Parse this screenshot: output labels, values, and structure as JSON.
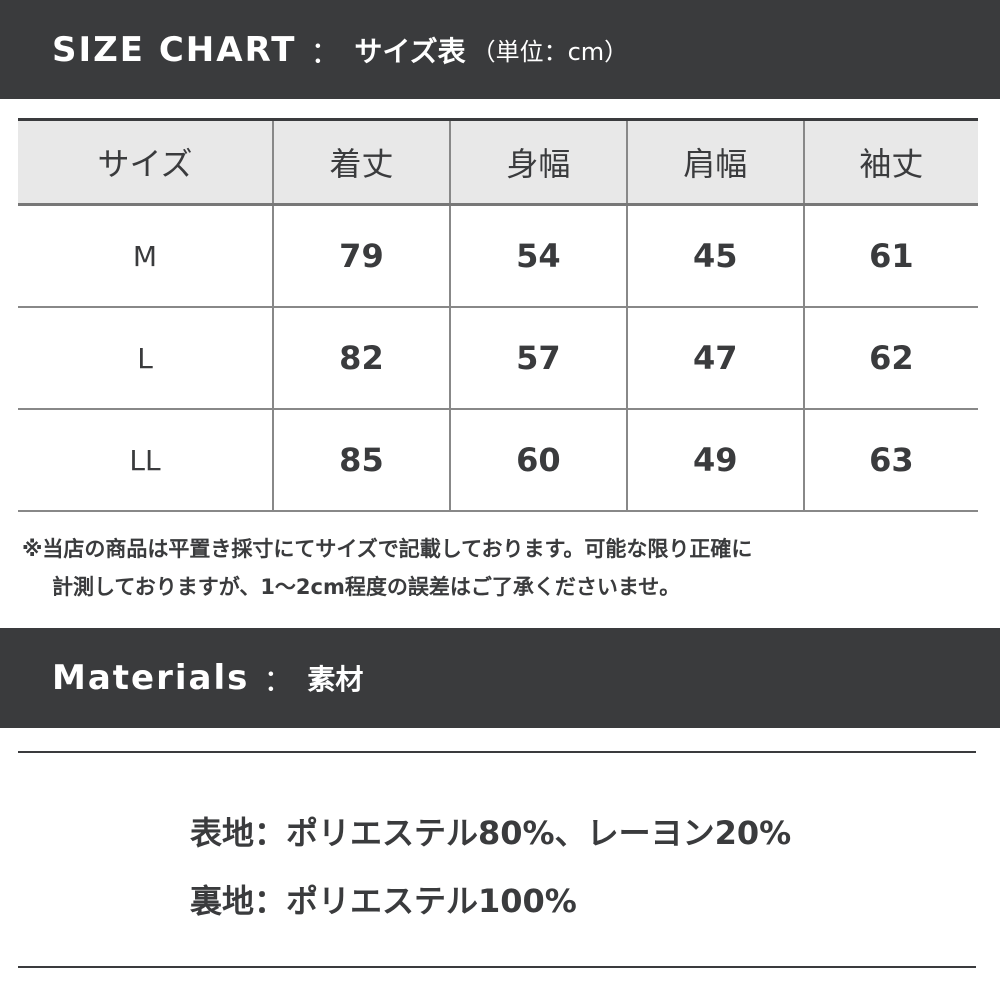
{
  "size_header": {
    "title": "SIZE CHART",
    "separator": "：",
    "subtitle": "サイズ表",
    "unit": "（単位：cm）"
  },
  "table": {
    "columns": [
      "サイズ",
      "着丈",
      "身幅",
      "肩幅",
      "袖丈"
    ],
    "rows": [
      [
        "M",
        "79",
        "54",
        "45",
        "61"
      ],
      [
        "L",
        "82",
        "57",
        "47",
        "62"
      ],
      [
        "LL",
        "85",
        "60",
        "49",
        "63"
      ]
    ]
  },
  "note": {
    "line1": "※当店の商品は平置き採寸にてサイズで記載しております。可能な限り正確に",
    "line2": "計測しておりますが、1～2cm程度の誤差はご了承くださいませ。"
  },
  "materials_header": {
    "title": "Materials",
    "separator": "：",
    "subtitle": "素材"
  },
  "materials": [
    "表地：ポリエステル80%、レーヨン20%",
    "裏地：ポリエステル100%"
  ],
  "colors": {
    "dark": "#3a3b3d",
    "header_bg": "#e8e8e8",
    "grid": "#888888"
  }
}
